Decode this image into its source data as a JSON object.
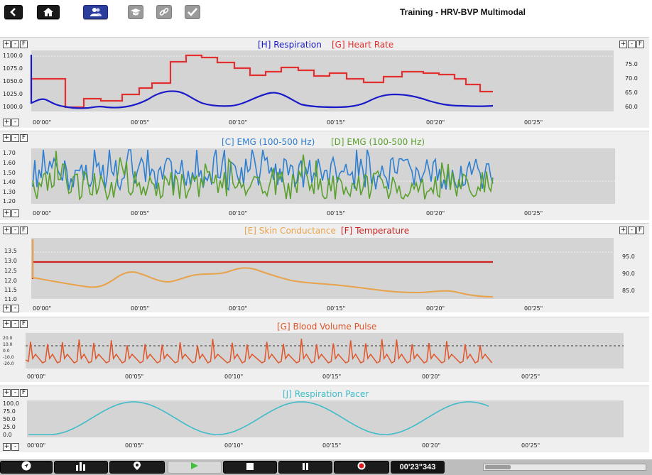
{
  "window": {
    "title": "Training - HRV-BVP Multimodal"
  },
  "toolbar": {
    "buttons": [
      "back-icon",
      "home-icon",
      "users-icon",
      "graduation-cap-icon",
      "link-icon",
      "checkmark-icon"
    ]
  },
  "panels": [
    {
      "id": "resp-hr",
      "controls": [
        "+",
        "-",
        "F"
      ],
      "legend": [
        {
          "text": "[H] Respiration",
          "color": "#1a1ac8"
        },
        {
          "text": "[G] Heart Rate",
          "color": "#e23030"
        }
      ],
      "left_ticks": [
        "1100.0",
        "1075.0",
        "1050.0",
        "1025.0",
        "1000.0"
      ],
      "right_ticks": [
        "75.0",
        "70.0",
        "65.0",
        "60.0"
      ],
      "time_ticks": [
        "00'00\"",
        "00'05\"",
        "00'10\"",
        "00'15\"",
        "00'20\"",
        "00'25\""
      ]
    },
    {
      "id": "emg",
      "controls": [
        "+",
        "-",
        "F"
      ],
      "legend": [
        {
          "text": "[C] EMG (100-500 Hz)",
          "color": "#2f7fd0"
        },
        {
          "text": "[D] EMG (100-500 Hz)",
          "color": "#5aa02c"
        }
      ],
      "left_ticks": [
        "1.70",
        "1.60",
        "1.50",
        "1.40",
        "1.30",
        "1.20"
      ],
      "right_ticks": [],
      "time_ticks": [
        "00'00\"",
        "00'05\"",
        "00'10\"",
        "00'15\"",
        "00'20\"",
        "00'25\""
      ]
    },
    {
      "id": "sc-temp",
      "controls": [
        "+",
        "-",
        "F"
      ],
      "legend": [
        {
          "text": "[E] Skin Conductance",
          "color": "#e8a24a"
        },
        {
          "text": "[F] Temperature",
          "color": "#cc2222"
        }
      ],
      "left_ticks": [
        "13.5",
        "13.0",
        "12.5",
        "12.0",
        "11.5",
        "11.0"
      ],
      "right_ticks": [
        "95.0",
        "90.0",
        "85.0"
      ],
      "time_ticks": [
        "00'00\"",
        "00'05\"",
        "00'10\"",
        "00'15\"",
        "00'20\"",
        "00'25\""
      ]
    },
    {
      "id": "bvp",
      "controls": [
        "+",
        "-",
        "F"
      ],
      "legend": [
        {
          "text": "[G] Blood Volume Pulse",
          "color": "#e0552a"
        }
      ],
      "left_ticks": [
        "20.0",
        "10.0",
        "0.0",
        "-10.0",
        "-20.0"
      ],
      "right_ticks": [],
      "time_ticks": [
        "00'00\"",
        "00'05\"",
        "00'10\"",
        "00'15\"",
        "00'20\"",
        "00'25\""
      ]
    },
    {
      "id": "pacer",
      "controls": [
        "+",
        "-",
        "F"
      ],
      "legend": [
        {
          "text": "[J] Respiration Pacer",
          "color": "#3fbcc8"
        }
      ],
      "left_ticks": [
        "100.0",
        "75.0",
        "50.0",
        "25.0",
        "0.0"
      ],
      "right_ticks": [],
      "time_ticks": [
        "00'00\"",
        "00'05\"",
        "00'10\"",
        "00'15\"",
        "00'20\"",
        "00'25\""
      ]
    }
  ],
  "bottombar": {
    "buttons": [
      "navigate-icon",
      "bar-chart-icon",
      "map-pin-icon",
      "play-icon",
      "stop-icon",
      "pause-icon",
      "record-icon"
    ],
    "timer": "00'23\"343",
    "scroll_fraction": 0.0
  }
}
